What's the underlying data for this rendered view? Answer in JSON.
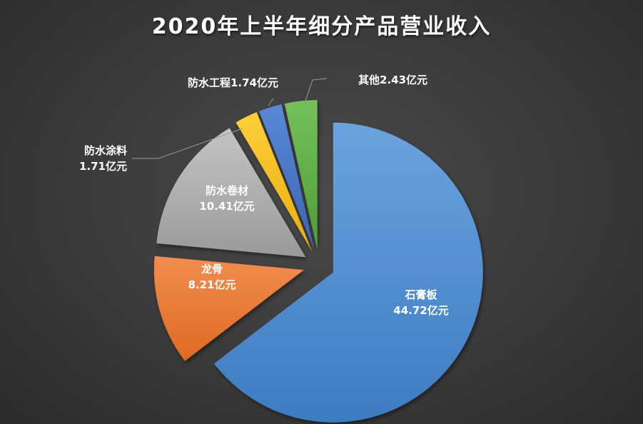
{
  "chart_data": {
    "type": "pie",
    "title": "2020年上半年细分产品营业收入",
    "unit": "亿元",
    "slices": [
      {
        "name": "石膏板",
        "value": 44.72,
        "color": "#4a86c8",
        "label_name": "石膏板",
        "label_value": "44.72亿元"
      },
      {
        "name": "龙骨",
        "value": 8.21,
        "color": "#ec7a32",
        "label_name": "龙骨",
        "label_value": "8.21亿元"
      },
      {
        "name": "防水卷材",
        "value": 10.41,
        "color": "#a5a5a5",
        "label_name": "防水卷材",
        "label_value": "10.41亿元"
      },
      {
        "name": "防水涂料",
        "value": 1.71,
        "color": "#f2bd1c",
        "label_name": "防水涂料",
        "label_value": "1.71亿元"
      },
      {
        "name": "防水工程",
        "value": 1.74,
        "color": "#4472c4",
        "label_name": "防水工程",
        "label_value": "1.74亿元"
      },
      {
        "name": "其他",
        "value": 2.43,
        "color": "#5fad46",
        "label_name": "其他",
        "label_value": "2.43亿元"
      }
    ]
  }
}
